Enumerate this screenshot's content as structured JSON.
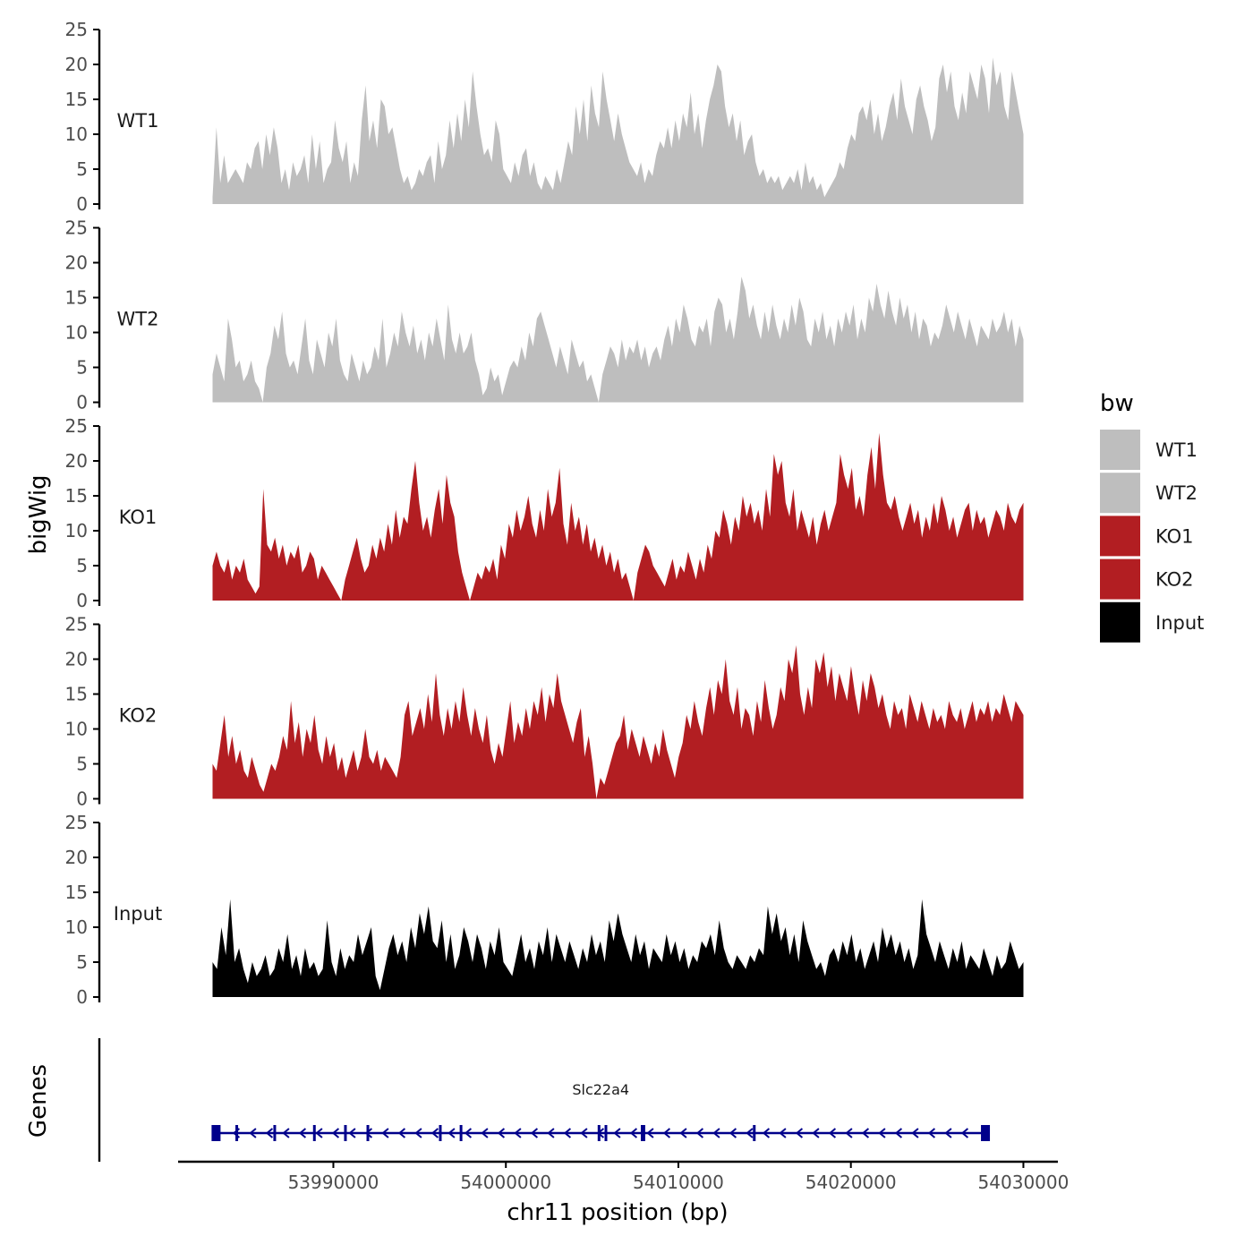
{
  "chart_data": {
    "type": "area",
    "title": "",
    "xlabel": "chr11 position (bp)",
    "ylabel": "bigWig",
    "genes_label": "Genes",
    "xlim": [
      53981000,
      54032000
    ],
    "x_ticks": [
      53990000,
      54000000,
      54010000,
      54020000,
      54030000
    ],
    "x_tick_labels": [
      "53990000",
      "54000000",
      "54010000",
      "54020000",
      "54030000"
    ],
    "ylim": [
      0,
      25
    ],
    "y_ticks": [
      0,
      5,
      10,
      15,
      20,
      25
    ],
    "y_tick_labels": [
      "0",
      "5",
      "10",
      "15",
      "20",
      "25"
    ],
    "x_start": 53983000,
    "x_end": 54030000,
    "legend": {
      "title": "bw",
      "position": "right",
      "entries": [
        {
          "label": "WT1",
          "color": "#bebebe"
        },
        {
          "label": "WT2",
          "color": "#bebebe"
        },
        {
          "label": "KO1",
          "color": "#b21e22"
        },
        {
          "label": "KO2",
          "color": "#b21e22"
        },
        {
          "label": "Input",
          "color": "#000000"
        }
      ]
    },
    "series": [
      {
        "name": "WT1",
        "color": "#bebebe",
        "values": [
          1,
          11,
          3,
          7,
          3,
          4,
          5,
          4,
          3,
          6,
          5,
          8,
          9,
          5,
          10,
          7,
          11,
          8,
          3,
          5,
          2,
          6,
          4,
          5,
          7,
          3,
          10,
          5,
          9,
          3,
          5,
          6,
          12,
          8,
          6,
          9,
          3,
          6,
          4,
          12,
          17,
          9,
          12,
          8,
          15,
          14,
          10,
          11,
          8,
          5,
          3,
          4,
          2,
          3,
          5,
          4,
          6,
          7,
          3,
          9,
          5,
          7,
          12,
          8,
          13,
          9,
          15,
          11,
          19,
          14,
          10,
          7,
          8,
          6,
          12,
          10,
          5,
          4,
          3,
          6,
          4,
          7,
          8,
          4,
          6,
          3,
          2,
          4,
          3,
          2,
          5,
          3,
          6,
          9,
          7,
          14,
          10,
          15,
          9,
          17,
          13,
          11,
          19,
          15,
          12,
          9,
          13,
          10,
          8,
          6,
          5,
          4,
          6,
          3,
          5,
          4,
          7,
          9,
          8,
          11,
          8,
          12,
          9,
          13,
          11,
          16,
          10,
          13,
          8,
          12,
          15,
          17,
          20,
          19,
          14,
          11,
          13,
          9,
          12,
          7,
          9,
          10,
          6,
          4,
          5,
          3,
          4,
          3,
          4,
          2,
          3,
          4,
          3,
          5,
          2,
          6,
          3,
          4,
          2,
          3,
          1,
          2,
          3,
          4,
          6,
          5,
          8,
          10,
          9,
          13,
          14,
          12,
          15,
          10,
          13,
          9,
          11,
          14,
          16,
          12,
          18,
          14,
          12,
          10,
          15,
          17,
          14,
          12,
          9,
          11,
          18,
          20,
          16,
          19,
          14,
          12,
          16,
          13,
          19,
          17,
          15,
          20,
          18,
          13,
          21,
          17,
          19,
          14,
          12,
          19,
          16,
          13,
          10
        ]
      },
      {
        "name": "WT2",
        "color": "#bebebe",
        "values": [
          4,
          7,
          5,
          3,
          12,
          9,
          5,
          6,
          3,
          4,
          6,
          3,
          2,
          0,
          5,
          7,
          11,
          9,
          13,
          7,
          5,
          6,
          4,
          8,
          12,
          6,
          4,
          9,
          7,
          5,
          10,
          8,
          12,
          6,
          4,
          3,
          7,
          5,
          3,
          6,
          4,
          5,
          8,
          6,
          12,
          5,
          7,
          10,
          8,
          13,
          10,
          8,
          11,
          7,
          9,
          6,
          10,
          8,
          12,
          9,
          6,
          14,
          9,
          7,
          10,
          7,
          8,
          10,
          6,
          4,
          1,
          2,
          5,
          3,
          4,
          1,
          3,
          5,
          6,
          5,
          8,
          6,
          10,
          8,
          12,
          13,
          11,
          9,
          7,
          5,
          8,
          6,
          4,
          9,
          7,
          5,
          6,
          3,
          4,
          2,
          0,
          4,
          6,
          8,
          7,
          5,
          9,
          6,
          8,
          7,
          9,
          6,
          8,
          5,
          7,
          8,
          6,
          9,
          11,
          8,
          12,
          10,
          14,
          12,
          9,
          8,
          11,
          10,
          12,
          8,
          13,
          15,
          14,
          10,
          12,
          9,
          13,
          18,
          16,
          12,
          14,
          11,
          9,
          13,
          10,
          14,
          11,
          9,
          12,
          10,
          14,
          11,
          15,
          13,
          9,
          8,
          12,
          10,
          13,
          9,
          11,
          8,
          12,
          10,
          13,
          11,
          14,
          9,
          12,
          10,
          15,
          13,
          17,
          14,
          12,
          16,
          13,
          11,
          15,
          12,
          14,
          10,
          13,
          9,
          12,
          11,
          8,
          10,
          9,
          11,
          14,
          12,
          10,
          13,
          11,
          9,
          12,
          10,
          8,
          11,
          10,
          9,
          12,
          10,
          11,
          13,
          10,
          12,
          8,
          11,
          9
        ]
      },
      {
        "name": "KO1",
        "color": "#b21e22",
        "values": [
          5,
          7,
          5,
          4,
          6,
          3,
          5,
          4,
          6,
          3,
          2,
          1,
          2,
          16,
          8,
          7,
          9,
          6,
          8,
          5,
          7,
          6,
          8,
          4,
          5,
          7,
          6,
          3,
          5,
          4,
          3,
          2,
          1,
          0,
          3,
          5,
          7,
          9,
          6,
          4,
          5,
          8,
          6,
          9,
          7,
          11,
          8,
          13,
          9,
          12,
          11,
          16,
          20,
          14,
          10,
          12,
          9,
          13,
          16,
          11,
          18,
          14,
          12,
          7,
          4,
          2,
          0,
          2,
          4,
          3,
          5,
          4,
          6,
          3,
          8,
          6,
          11,
          9,
          13,
          10,
          12,
          15,
          11,
          9,
          13,
          10,
          16,
          12,
          14,
          19,
          11,
          8,
          14,
          10,
          12,
          8,
          11,
          7,
          9,
          6,
          8,
          5,
          7,
          4,
          6,
          3,
          4,
          2,
          0,
          4,
          6,
          8,
          7,
          5,
          4,
          3,
          2,
          4,
          6,
          3,
          5,
          4,
          7,
          5,
          3,
          6,
          4,
          8,
          6,
          10,
          9,
          13,
          11,
          8,
          12,
          10,
          15,
          12,
          14,
          11,
          13,
          10,
          16,
          12,
          21,
          18,
          20,
          14,
          12,
          16,
          10,
          13,
          11,
          9,
          12,
          8,
          11,
          13,
          10,
          12,
          14,
          21,
          18,
          16,
          19,
          13,
          15,
          12,
          18,
          22,
          16,
          24,
          18,
          14,
          13,
          15,
          12,
          10,
          12,
          14,
          11,
          13,
          9,
          12,
          10,
          14,
          11,
          15,
          13,
          10,
          12,
          9,
          11,
          13,
          14,
          10,
          13,
          11,
          12,
          9,
          11,
          13,
          12,
          10,
          14,
          12,
          11,
          13,
          14
        ]
      },
      {
        "name": "KO2",
        "color": "#b21e22",
        "values": [
          5,
          4,
          8,
          12,
          6,
          9,
          5,
          7,
          4,
          3,
          6,
          4,
          2,
          1,
          3,
          5,
          4,
          6,
          9,
          7,
          14,
          8,
          11,
          6,
          10,
          8,
          12,
          7,
          5,
          9,
          6,
          8,
          4,
          6,
          3,
          5,
          7,
          4,
          6,
          10,
          6,
          5,
          7,
          4,
          6,
          5,
          4,
          3,
          6,
          12,
          14,
          9,
          11,
          13,
          10,
          15,
          11,
          18,
          12,
          9,
          13,
          10,
          14,
          11,
          16,
          12,
          9,
          13,
          10,
          8,
          12,
          7,
          5,
          8,
          6,
          10,
          14,
          8,
          11,
          9,
          13,
          10,
          14,
          12,
          16,
          11,
          15,
          13,
          18,
          14,
          12,
          10,
          8,
          11,
          13,
          6,
          9,
          5,
          0,
          3,
          2,
          4,
          6,
          8,
          9,
          12,
          7,
          10,
          8,
          6,
          9,
          7,
          5,
          8,
          6,
          10,
          7,
          5,
          3,
          6,
          8,
          12,
          10,
          14,
          11,
          9,
          13,
          16,
          12,
          17,
          15,
          20,
          14,
          12,
          16,
          10,
          13,
          12,
          9,
          14,
          11,
          17,
          13,
          10,
          12,
          16,
          14,
          20,
          18,
          22,
          15,
          12,
          16,
          13,
          20,
          18,
          21,
          16,
          19,
          14,
          18,
          16,
          14,
          19,
          15,
          12,
          17,
          14,
          18,
          16,
          13,
          15,
          12,
          10,
          14,
          12,
          13,
          10,
          15,
          13,
          11,
          14,
          12,
          10,
          13,
          11,
          12,
          10,
          14,
          12,
          11,
          13,
          10,
          12,
          14,
          11,
          13,
          12,
          14,
          11,
          13,
          12,
          15,
          13,
          11,
          14,
          13,
          12
        ]
      },
      {
        "name": "Input",
        "color": "#000000",
        "values": [
          5,
          4,
          10,
          6,
          14,
          5,
          7,
          4,
          2,
          5,
          3,
          4,
          6,
          3,
          4,
          7,
          5,
          9,
          4,
          6,
          3,
          7,
          4,
          5,
          3,
          4,
          11,
          5,
          3,
          7,
          4,
          6,
          5,
          9,
          6,
          8,
          10,
          3,
          1,
          4,
          7,
          9,
          6,
          8,
          5,
          10,
          7,
          12,
          9,
          13,
          8,
          7,
          11,
          5,
          9,
          4,
          6,
          10,
          8,
          5,
          9,
          7,
          4,
          8,
          6,
          10,
          5,
          4,
          3,
          6,
          9,
          5,
          7,
          4,
          8,
          6,
          10,
          5,
          9,
          7,
          5,
          8,
          6,
          4,
          7,
          5,
          9,
          6,
          8,
          5,
          11,
          8,
          12,
          9,
          7,
          5,
          9,
          6,
          8,
          4,
          7,
          6,
          5,
          9,
          6,
          8,
          5,
          7,
          4,
          6,
          5,
          8,
          7,
          9,
          6,
          11,
          7,
          5,
          4,
          6,
          5,
          4,
          6,
          5,
          7,
          6,
          13,
          9,
          12,
          8,
          10,
          6,
          9,
          5,
          11,
          8,
          6,
          4,
          5,
          3,
          6,
          7,
          5,
          8,
          6,
          9,
          5,
          7,
          4,
          6,
          8,
          5,
          10,
          7,
          9,
          6,
          8,
          5,
          7,
          4,
          6,
          14,
          9,
          7,
          5,
          8,
          6,
          4,
          7,
          5,
          8,
          4,
          6,
          5,
          4,
          7,
          5,
          3,
          6,
          4,
          5,
          8,
          6,
          4,
          5
        ]
      }
    ],
    "gene_track": {
      "gene_name": "Slc22a4",
      "color": "#00008b",
      "start": 53983200,
      "end": 54027800,
      "strand": "-",
      "exons": [
        53983200,
        53984400,
        53986600,
        53988900,
        53990700,
        53992000,
        53996200,
        53997400,
        54005400,
        54005800,
        54007900,
        54008000,
        54014400,
        54027800
      ]
    }
  }
}
